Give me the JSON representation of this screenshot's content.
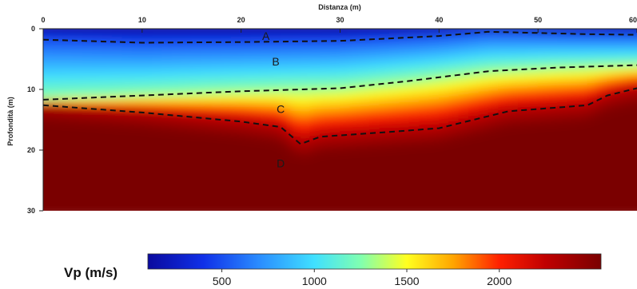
{
  "chart_data": {
    "type": "heatmap",
    "title": "",
    "xlabel": "Distanza (m)",
    "ylabel": "Profondità (m)",
    "xlim": [
      0,
      60
    ],
    "ylim": [
      0,
      30
    ],
    "y_inverted": true,
    "x_ticks": [
      0,
      10,
      20,
      30,
      40,
      50,
      60
    ],
    "y_ticks": [
      0,
      10,
      20,
      30
    ],
    "x_tick_labels": [
      "0",
      "10",
      "20",
      "30",
      "40",
      "50",
      "60"
    ],
    "y_tick_labels": [
      "0",
      "10",
      "20",
      "30"
    ],
    "colorbar": {
      "title": "Vp (m/s)",
      "range": [
        100,
        2550
      ],
      "ticks": [
        500,
        1000,
        1500,
        2000
      ],
      "tick_labels": [
        "500",
        "1000",
        "1500",
        "2000"
      ],
      "colors": [
        {
          "v": 100,
          "c": "#0a0a9e"
        },
        {
          "v": 400,
          "c": "#1030e8"
        },
        {
          "v": 700,
          "c": "#2a8cff"
        },
        {
          "v": 1000,
          "c": "#40e0ff"
        },
        {
          "v": 1250,
          "c": "#80ffb0"
        },
        {
          "v": 1500,
          "c": "#ffff20"
        },
        {
          "v": 1750,
          "c": "#ffa500"
        },
        {
          "v": 2000,
          "c": "#ff2000"
        },
        {
          "v": 2250,
          "c": "#c00000"
        },
        {
          "v": 2550,
          "c": "#7a0000"
        }
      ]
    },
    "interfaces": [
      {
        "from": "A",
        "to": "B",
        "points": [
          [
            0,
            1.8
          ],
          [
            10,
            2.3
          ],
          [
            20,
            2.2
          ],
          [
            30,
            2.0
          ],
          [
            40,
            1.2
          ],
          [
            45,
            0.5
          ],
          [
            50,
            0.7
          ],
          [
            55,
            0.9
          ],
          [
            60,
            1.0
          ]
        ]
      },
      {
        "from": "B",
        "to": "C",
        "points": [
          [
            0,
            11.7
          ],
          [
            10,
            11.0
          ],
          [
            20,
            10.3
          ],
          [
            30,
            9.8
          ],
          [
            37,
            8.6
          ],
          [
            45,
            7.0
          ],
          [
            52,
            6.4
          ],
          [
            60,
            6.0
          ]
        ]
      },
      {
        "from": "C",
        "to": "D",
        "points": [
          [
            0,
            12.6
          ],
          [
            10,
            13.8
          ],
          [
            20,
            15.3
          ],
          [
            24,
            16.2
          ],
          [
            26,
            19.0
          ],
          [
            28,
            17.8
          ],
          [
            35,
            17.0
          ],
          [
            40,
            16.4
          ],
          [
            47,
            13.6
          ],
          [
            55,
            12.6
          ],
          [
            57,
            11.0
          ],
          [
            60,
            9.8
          ]
        ]
      }
    ],
    "layers": [
      {
        "label": "A",
        "x": 22.5,
        "y": 1.2,
        "vp_range": [
          100,
          500
        ]
      },
      {
        "label": "B",
        "x": 23.5,
        "y": 5.4,
        "vp_range": [
          500,
          1300
        ]
      },
      {
        "label": "C",
        "x": 24,
        "y": 13.2,
        "vp_range": [
          1300,
          2300
        ]
      },
      {
        "label": "D",
        "x": 24,
        "y": 22.2,
        "vp_range": [
          2300,
          2550
        ]
      }
    ]
  }
}
